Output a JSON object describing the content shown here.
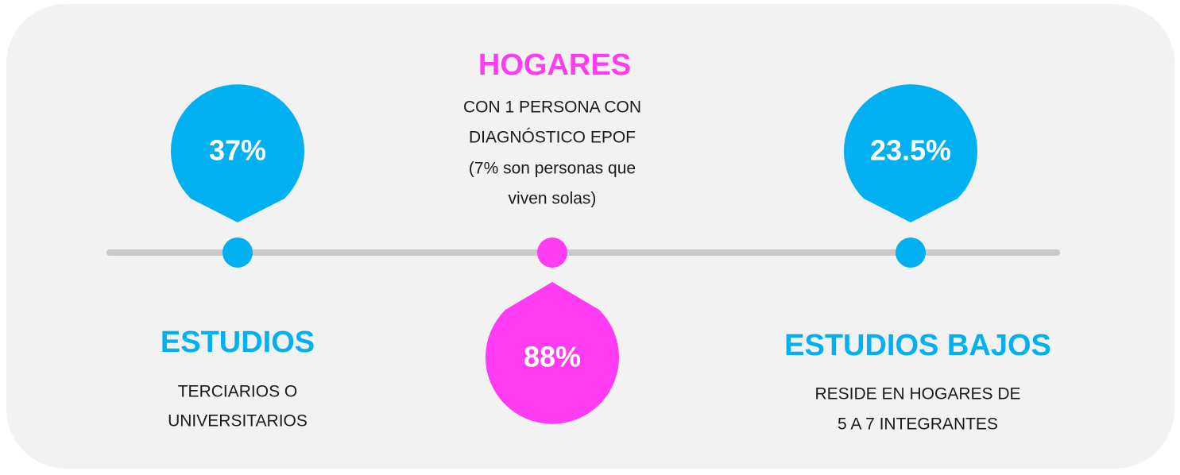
{
  "items": [
    {
      "value": "37%",
      "heading": "ESTUDIOS",
      "lines": [
        "TERCIARIOS O",
        "UNIVERSITARIOS"
      ]
    },
    {
      "value": "88%",
      "heading": "HOGARES",
      "lines": [
        "CON 1 PERSONA CON",
        "DIAGNÓSTICO EPOF",
        "(7% son personas que",
        "viven solas)"
      ]
    },
    {
      "value": "23.5%",
      "heading": "ESTUDIOS BAJOS",
      "lines": [
        "RESIDE EN HOGARES DE",
        "5 A 7 INTEGRANTES"
      ]
    }
  ]
}
